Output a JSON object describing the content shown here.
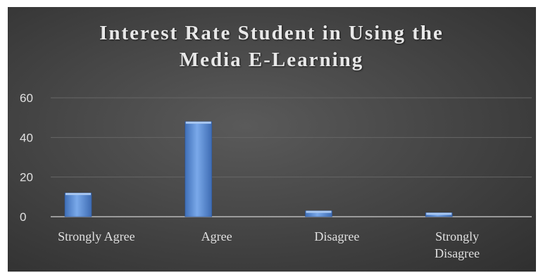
{
  "chart_data": {
    "type": "bar",
    "title": "Interest Rate Student in Using the\nMedia E-Learning",
    "categories": [
      "Strongly Agree",
      "Agree",
      "Disagree",
      "Strongly Disagree"
    ],
    "category_lines": [
      [
        "Strongly Agree"
      ],
      [
        "Agree"
      ],
      [
        "Disagree"
      ],
      [
        "Strongly",
        "Disagree"
      ]
    ],
    "values": [
      12,
      48,
      3,
      2
    ],
    "yticks": [
      0,
      20,
      40,
      60
    ],
    "ylim": [
      0,
      60
    ],
    "grid": true,
    "bar_color": "#5b8fd6",
    "background": "#474747"
  }
}
